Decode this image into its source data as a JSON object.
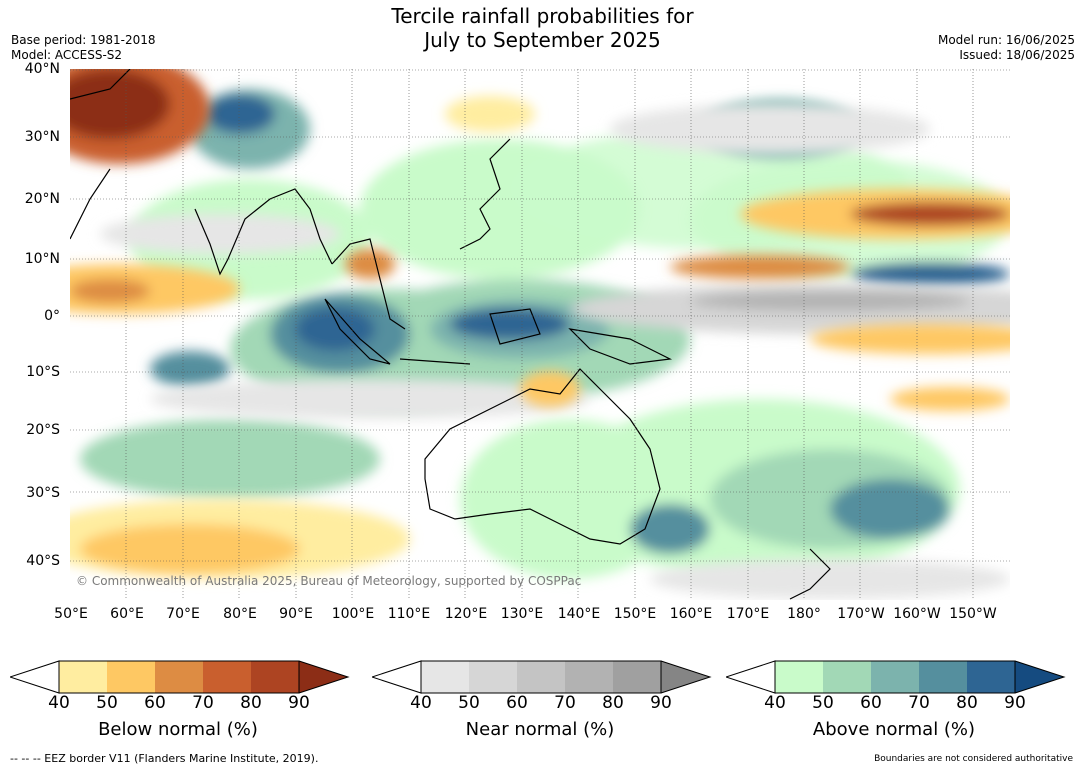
{
  "header": {
    "title_line1": "Tercile rainfall probabilities for",
    "title_line2": "July to September 2025",
    "base_period": "Base period: 1981-2018",
    "model": "Model: ACCESS-S2",
    "model_run": "Model run: 16/06/2025",
    "issued": "Issued: 18/06/2025"
  },
  "map": {
    "lat_labels": [
      "40°N",
      "30°N",
      "20°N",
      "10°N",
      "0°",
      "10°S",
      "20°S",
      "30°S",
      "40°S"
    ],
    "lon_labels": [
      "50°E",
      "60°E",
      "70°E",
      "80°E",
      "90°E",
      "100°E",
      "110°E",
      "120°E",
      "130°E",
      "140°E",
      "150°E",
      "160°E",
      "170°E",
      "180°",
      "170°W",
      "160°W",
      "150°W"
    ],
    "copyright": "© Commonwealth of Australia 2025, Bureau of Meteorology, supported by COSPPac"
  },
  "legends": [
    {
      "title": "Below normal (%)",
      "ticks": [
        "40",
        "50",
        "60",
        "70",
        "80",
        "90"
      ],
      "colors": [
        "#ffeda0",
        "#fec863",
        "#dd8c43",
        "#c95f2e",
        "#ad4422",
        "#8c2d16"
      ]
    },
    {
      "title": "Near normal (%)",
      "ticks": [
        "40",
        "50",
        "60",
        "70",
        "80",
        "90"
      ],
      "colors": [
        "#e6e6e6",
        "#d6d6d6",
        "#c4c4c4",
        "#b2b2b2",
        "#a0a0a0",
        "#858585"
      ]
    },
    {
      "title": "Above normal (%)",
      "ticks": [
        "40",
        "50",
        "60",
        "70",
        "80",
        "90"
      ],
      "colors": [
        "#c9fbca",
        "#a2d8b6",
        "#7cb3ad",
        "#558f9e",
        "#2e6593",
        "#154b80"
      ]
    }
  ],
  "footer": {
    "eez_note": "--  --  -- EEZ border V11 (Flanders Marine Institute, 2019).",
    "disclaimer": "Boundaries are not considered authoritative"
  }
}
